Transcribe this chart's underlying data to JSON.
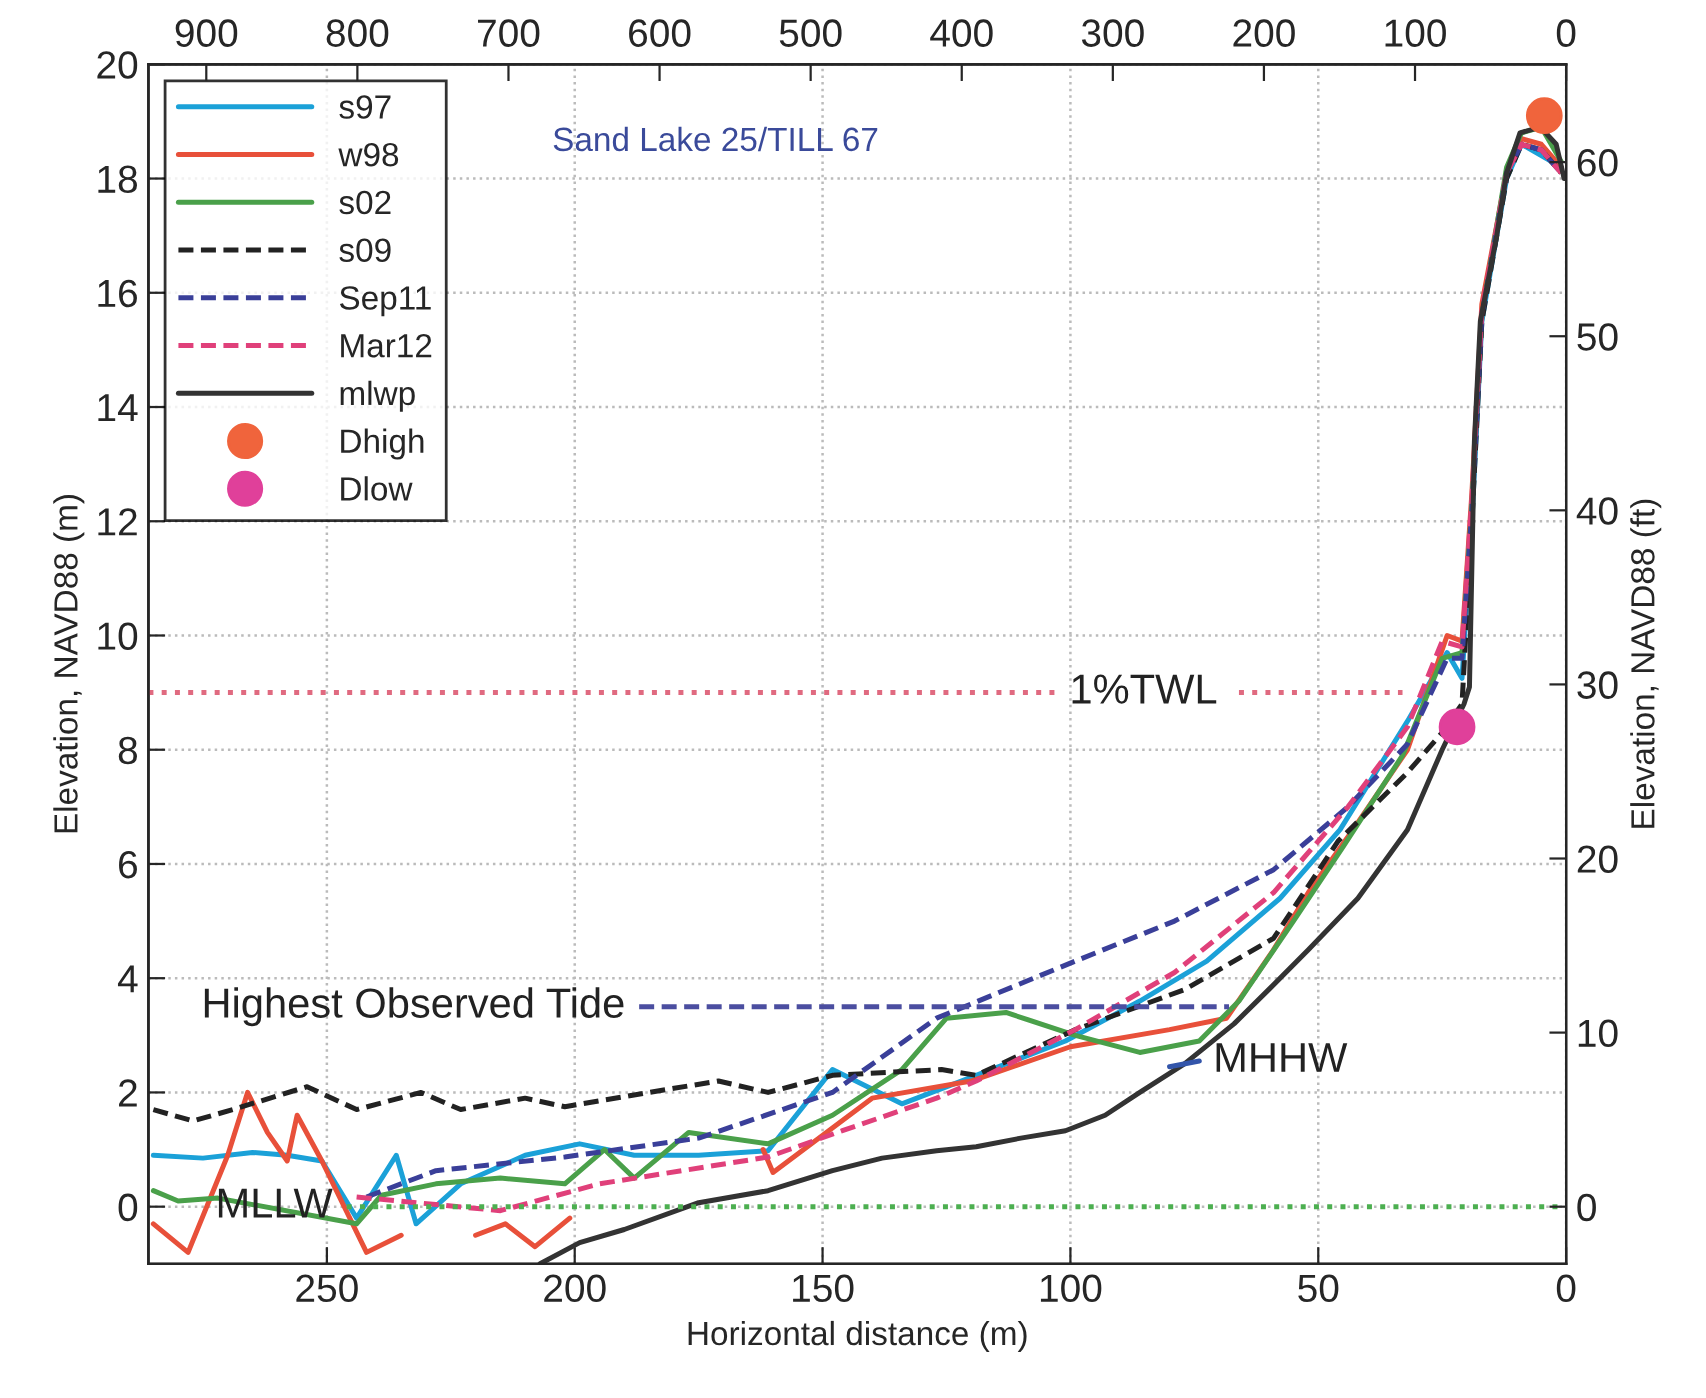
{
  "chart_data": {
    "type": "line",
    "xlabel": "Horizontal distance (m)",
    "ylabel": "Elevation, NAVD88 (m)",
    "y2label": "Elevation, NAVD88 (ft)",
    "xlim": [
      286,
      0
    ],
    "xticks": [
      250,
      200,
      150,
      100,
      50,
      0
    ],
    "ylim": [
      -1,
      20
    ],
    "yticks": [
      0,
      2,
      4,
      6,
      8,
      10,
      12,
      14,
      16,
      18,
      20
    ],
    "y2lim": [
      -3.28,
      65.62
    ],
    "y2ticks": [
      0,
      10,
      20,
      30,
      40,
      50,
      60
    ],
    "x2lim": [
      938.3,
      0
    ],
    "x2ticks": [
      900,
      800,
      700,
      600,
      500,
      400,
      300,
      200,
      100,
      0
    ],
    "grid": true,
    "legend": "top left",
    "annotations": [
      "Sand Lake 25/TILL 67",
      {
        "text": "1%TWL",
        "x": 103,
        "y": 9.0
      },
      {
        "text": "Highest Observed Tide",
        "x": 187,
        "y": 3.5
      },
      {
        "text": "MLLW",
        "x": 246,
        "y": 0
      },
      {
        "text": "MHHW",
        "x": 74,
        "y": 2.55
      }
    ],
    "series": [
      {
        "name": "s97",
        "color": "#1ba1d8",
        "line_style": "solid",
        "x": [
          285,
          275,
          265,
          258,
          251,
          244,
          236,
          232,
          223,
          210,
          199,
          188,
          175,
          161,
          148,
          134,
          119,
          101,
          86,
          72.5,
          57.7,
          45.6,
          32,
          24,
          21,
          19,
          17,
          12,
          9,
          5,
          1
        ],
        "values": [
          0.9,
          0.85,
          0.95,
          0.9,
          0.8,
          -0.2,
          0.9,
          -0.3,
          0.4,
          0.9,
          1.1,
          0.9,
          0.9,
          0.98,
          2.4,
          1.8,
          2.3,
          2.9,
          3.6,
          4.3,
          5.4,
          6.6,
          8.5,
          9.7,
          9.25,
          12,
          15.5,
          18.0,
          18.6,
          18.4,
          18.2
        ]
      },
      {
        "name": "w98",
        "color": "#e8503a",
        "line_style": "solid",
        "x": [
          285,
          278,
          270,
          266,
          262,
          258,
          256,
          251,
          242,
          235,
          228,
          220,
          214,
          208,
          201,
          196,
          190,
          175,
          165,
          162,
          160,
          140,
          120,
          100,
          80,
          68.5,
          59,
          52,
          43,
          32,
          24,
          21,
          19,
          17,
          12,
          9,
          5,
          1
        ],
        "values": [
          -0.3,
          -0.8,
          0.9,
          2.0,
          1.3,
          0.8,
          1.6,
          0.8,
          -0.8,
          -0.5,
          null,
          -0.5,
          -0.3,
          -0.7,
          -0.2,
          null,
          null,
          null,
          null,
          1.0,
          0.6,
          1.9,
          2.2,
          2.8,
          3.1,
          3.3,
          4.5,
          5.5,
          6.6,
          8.0,
          10.0,
          9.9,
          12.5,
          15.8,
          18.1,
          18.7,
          18.6,
          18.2
        ]
      },
      {
        "name": "s02",
        "color": "#4aa04a",
        "line_style": "solid",
        "x": [
          285,
          280,
          272,
          244,
          239,
          228,
          215,
          202,
          194,
          188,
          177,
          161,
          148,
          134,
          125,
          113,
          99,
          86,
          74,
          66,
          55,
          45,
          33,
          25,
          21,
          19,
          17,
          12,
          9,
          5,
          1
        ],
        "values": [
          0.28,
          0.1,
          0.15,
          -0.3,
          0.2,
          0.4,
          0.5,
          0.4,
          1.0,
          0.5,
          1.3,
          1.1,
          1.6,
          2.4,
          3.3,
          3.4,
          3.0,
          2.7,
          2.9,
          3.6,
          5.0,
          6.3,
          7.9,
          9.6,
          9.7,
          12.3,
          15.6,
          18.2,
          18.8,
          18.9,
          18.3
        ]
      },
      {
        "name": "s09",
        "color": "#222222",
        "line_style": "dashed",
        "x": [
          285,
          277,
          269,
          254,
          244,
          231,
          223,
          210,
          202,
          185,
          171,
          161,
          148,
          126,
          119,
          99,
          77,
          59,
          46,
          32,
          25,
          21,
          19,
          17,
          12,
          9,
          5,
          1
        ],
        "values": [
          1.7,
          1.5,
          1.7,
          2.1,
          1.7,
          2.0,
          1.7,
          1.9,
          1.75,
          2.0,
          2.2,
          2.0,
          2.3,
          2.4,
          2.3,
          3.1,
          3.8,
          4.7,
          6.4,
          7.6,
          8.3,
          8.8,
          12,
          15.5,
          18.0,
          18.6,
          18.5,
          18.1
        ]
      },
      {
        "name": "Sep11",
        "color": "#3a3f99",
        "line_style": "dashed",
        "x": [
          242,
          228,
          202,
          175,
          148,
          127,
          99,
          79,
          59,
          44,
          32,
          24,
          21,
          19,
          17,
          12,
          9,
          5,
          1
        ],
        "values": [
          0.17,
          0.63,
          0.87,
          1.2,
          2.0,
          3.3,
          4.3,
          5.0,
          5.9,
          7.0,
          8.1,
          9.6,
          9.6,
          12.2,
          15.6,
          18.1,
          18.6,
          18.5,
          18.1
        ]
      },
      {
        "name": "Mar12",
        "color": "#e0407a",
        "line_style": "dashed",
        "x": [
          244,
          215,
          195,
          161,
          146,
          127,
          119,
          99,
          79,
          59,
          44,
          32,
          25,
          21,
          19,
          17,
          12,
          9,
          5,
          1
        ],
        "values": [
          0.17,
          -0.07,
          0.4,
          0.87,
          1.33,
          1.9,
          2.2,
          3.1,
          4.1,
          5.5,
          7.0,
          8.4,
          9.9,
          9.8,
          12.4,
          15.7,
          18.1,
          18.6,
          18.5,
          18.1
        ]
      },
      {
        "name": "mlwp",
        "color": "#333333",
        "line_style": "solid",
        "x": [
          207,
          199,
          190,
          175,
          161,
          148,
          138,
          127,
          119,
          110,
          101,
          93,
          86,
          77,
          67,
          60,
          52,
          42,
          32,
          25,
          20.6,
          19.5,
          18.5,
          17.3,
          14,
          12,
          9.3,
          5.2,
          2,
          0.4
        ],
        "values": [
          -1,
          -0.63,
          -0.4,
          0.07,
          0.28,
          0.63,
          0.85,
          0.98,
          1.05,
          1.2,
          1.33,
          1.6,
          2.0,
          2.5,
          3.2,
          3.8,
          4.5,
          5.4,
          6.6,
          8.0,
          8.8,
          9.1,
          13.4,
          15.5,
          17.0,
          18.1,
          18.8,
          18.9,
          18.6,
          18.0
        ]
      },
      {
        "name": "Dhigh",
        "type": "scatter",
        "marker": "circle",
        "color": "#f0643c",
        "x": [
          4.4
        ],
        "values": [
          19.1
        ]
      },
      {
        "name": "Dlow",
        "type": "scatter",
        "marker": "circle",
        "color": "#e0409a",
        "x": [
          22
        ],
        "values": [
          8.4
        ]
      },
      {
        "color": "#e06a80",
        "line_style": "dotted",
        "x": [
          286,
          103,
          102,
          66,
          33
        ],
        "values": [
          9.0,
          9.0,
          null,
          9.0,
          9.0
        ]
      },
      {
        "color": "#4b4ea0",
        "line_style": "dashed",
        "x": [
          187,
          68
        ],
        "values": [
          3.5,
          3.5
        ]
      },
      {
        "color": "#4caf50",
        "line_style": "dotted",
        "x": [
          246,
          0
        ],
        "values": [
          0,
          0
        ]
      },
      {
        "color": "#3355aa",
        "line_style": "solid",
        "x": [
          80,
          74
        ],
        "values": [
          2.45,
          2.55
        ]
      }
    ]
  }
}
